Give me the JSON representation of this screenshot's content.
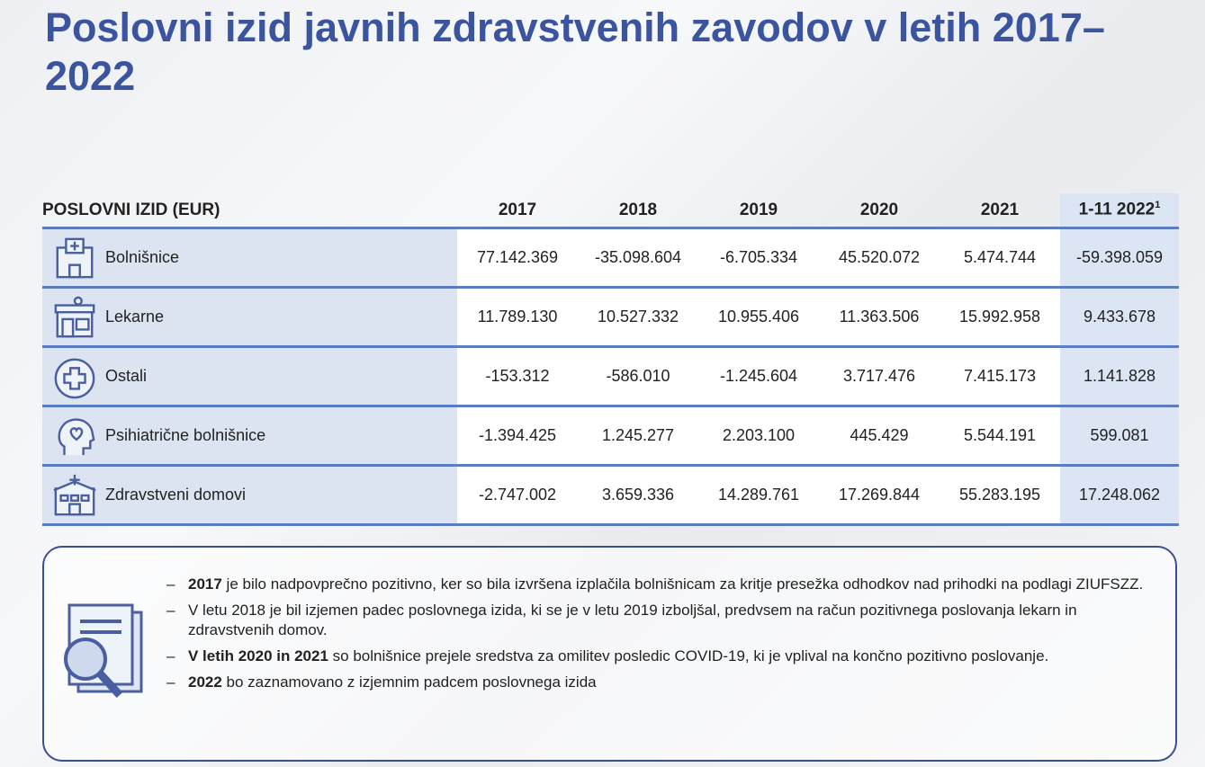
{
  "title": "Poslovni izid javnih zdravstvenih zavodov v letih 2017–2022",
  "table": {
    "header": [
      "POSLOVNI IZID (EUR)",
      "2017",
      "2018",
      "2019",
      "2020",
      "2021",
      "1-11 2022"
    ],
    "header_footnote": "1",
    "rows": [
      [
        "Bolnišnice",
        "77.142.369",
        "-35.098.604",
        "-6.705.334",
        "45.520.072",
        "5.474.744",
        "-59.398.059"
      ],
      [
        "Lekarne",
        "11.789.130",
        "10.527.332",
        "10.955.406",
        "11.363.506",
        "15.992.958",
        "9.433.678"
      ],
      [
        "Ostali",
        "-153.312",
        "-586.010",
        "-1.245.604",
        "3.717.476",
        "7.415.173",
        "1.141.828"
      ],
      [
        "Psihiatrične bolnišnice",
        "-1.394.425",
        "1.245.277",
        "2.203.100",
        "445.429",
        "5.544.191",
        "599.081"
      ],
      [
        "Zdravstveni domovi",
        "-2.747.002",
        "3.659.336",
        "14.289.761",
        "17.269.844",
        "55.283.195",
        "17.248.062"
      ]
    ]
  },
  "notes": [
    {
      "strong": "2017",
      "text": " je bilo nadpovprečno pozitivno, ker so bila izvršena izplačila bolnišnicam za kritje presežka odhodkov nad prihodki na podlagi ZIUFSZZ."
    },
    {
      "text": "V letu 2018 je bil izjemen padec poslovnega izida, ki se je v letu 2019 izboljšal, predvsem na račun pozitivnega poslovanja lekarn in zdravstvenih domov."
    },
    {
      "strong": "V letih 2020 in 2021",
      "text": " so bolnišnice prejele sredstva za omilitev posledic COVID-19, ki je vplival na končno pozitivno poslovanje."
    },
    {
      "strong": "2022",
      "text": " bo zaznamovano z izjemnim padcem poslovnega izida"
    }
  ]
}
